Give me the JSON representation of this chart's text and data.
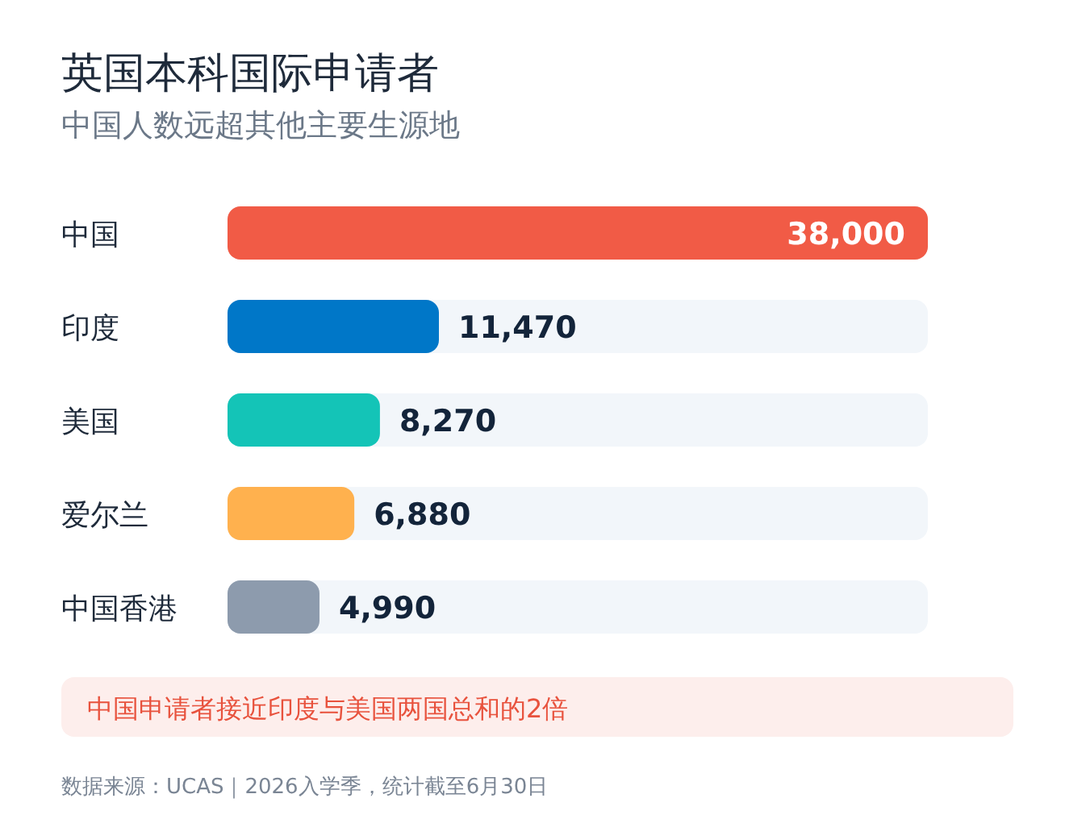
{
  "chart_data": {
    "type": "bar",
    "orientation": "horizontal",
    "title": "英国本科国际申请者",
    "subtitle": "中国人数远超其他主要生源地",
    "categories": [
      "中国",
      "印度",
      "美国",
      "爱尔兰",
      "中国香港"
    ],
    "values": [
      38000,
      11470,
      8270,
      6880,
      4990
    ],
    "colors": [
      "#f15b46",
      "#0077c8",
      "#14c4b7",
      "#ffb14e",
      "#8d9bad"
    ],
    "value_labels": [
      "38,000",
      "11,470",
      "8,270",
      "6,880",
      "4,990"
    ],
    "annotations": [
      "中国申请者接近印度与美国两国总和的2倍",
      "数据来源：UCAS｜2026入学季，统计截至6月30日"
    ]
  }
}
